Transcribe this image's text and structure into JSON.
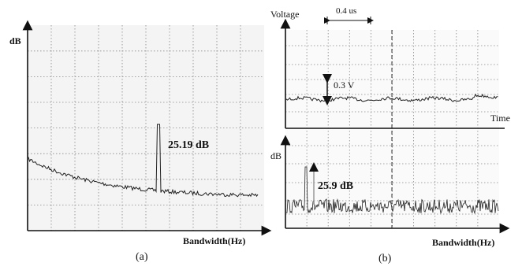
{
  "panels": [
    {
      "y_label": "dB",
      "annotation": "25.19 dB",
      "x_label": "Bandwidth(Hz)",
      "caption": "(a)"
    },
    {
      "y_label_top": "Voltage",
      "time_scale": "0.4 us",
      "voltage_scale": "0.3 V",
      "x_label_top": "Time",
      "y_label_bottom": "dB",
      "annotation": "25.9 dB",
      "x_label_bottom": "Bandwidth(Hz)",
      "caption": "(b)"
    }
  ]
}
